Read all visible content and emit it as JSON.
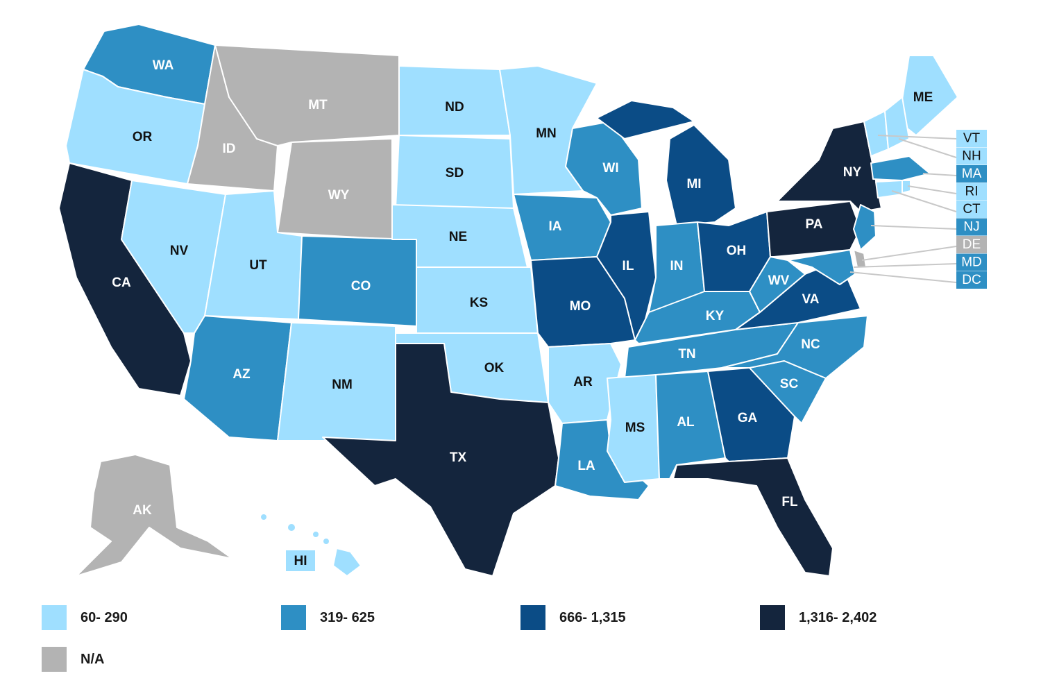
{
  "colors": {
    "c1": "#9fdfff",
    "c2": "#2e8fc4",
    "c3": "#0b4c86",
    "c4": "#14253d",
    "na": "#b3b3b3"
  },
  "legend": [
    {
      "label": "60- 290",
      "cls": "c1"
    },
    {
      "label": "319- 625",
      "cls": "c2"
    },
    {
      "label": "666- 1,315",
      "cls": "c3"
    },
    {
      "label": "1,316- 2,402",
      "cls": "c4"
    },
    {
      "label": "N/A",
      "cls": "na"
    }
  ],
  "states": [
    {
      "code": "WA",
      "cls": "c2"
    },
    {
      "code": "OR",
      "cls": "c1"
    },
    {
      "code": "CA",
      "cls": "c4"
    },
    {
      "code": "ID",
      "cls": "na"
    },
    {
      "code": "NV",
      "cls": "c1"
    },
    {
      "code": "MT",
      "cls": "na"
    },
    {
      "code": "WY",
      "cls": "na"
    },
    {
      "code": "UT",
      "cls": "c1"
    },
    {
      "code": "AZ",
      "cls": "c2"
    },
    {
      "code": "CO",
      "cls": "c2"
    },
    {
      "code": "NM",
      "cls": "c1"
    },
    {
      "code": "ND",
      "cls": "c1"
    },
    {
      "code": "SD",
      "cls": "c1"
    },
    {
      "code": "NE",
      "cls": "c1"
    },
    {
      "code": "KS",
      "cls": "c1"
    },
    {
      "code": "OK",
      "cls": "c1"
    },
    {
      "code": "TX",
      "cls": "c4"
    },
    {
      "code": "MN",
      "cls": "c1"
    },
    {
      "code": "IA",
      "cls": "c2"
    },
    {
      "code": "MO",
      "cls": "c3"
    },
    {
      "code": "AR",
      "cls": "c1"
    },
    {
      "code": "LA",
      "cls": "c2"
    },
    {
      "code": "WI",
      "cls": "c2"
    },
    {
      "code": "IL",
      "cls": "c3"
    },
    {
      "code": "MI",
      "cls": "c3"
    },
    {
      "code": "IN",
      "cls": "c2"
    },
    {
      "code": "OH",
      "cls": "c3"
    },
    {
      "code": "KY",
      "cls": "c2"
    },
    {
      "code": "TN",
      "cls": "c2"
    },
    {
      "code": "MS",
      "cls": "c1"
    },
    {
      "code": "AL",
      "cls": "c2"
    },
    {
      "code": "GA",
      "cls": "c3"
    },
    {
      "code": "FL",
      "cls": "c4"
    },
    {
      "code": "SC",
      "cls": "c2"
    },
    {
      "code": "NC",
      "cls": "c2"
    },
    {
      "code": "VA",
      "cls": "c3"
    },
    {
      "code": "WV",
      "cls": "c2"
    },
    {
      "code": "PA",
      "cls": "c4"
    },
    {
      "code": "NY",
      "cls": "c4"
    },
    {
      "code": "ME",
      "cls": "c1"
    },
    {
      "code": "AK",
      "cls": "na"
    },
    {
      "code": "HI",
      "cls": "c1"
    },
    {
      "code": "VT",
      "cls": "c1"
    },
    {
      "code": "NH",
      "cls": "c1"
    },
    {
      "code": "MA",
      "cls": "c2"
    },
    {
      "code": "RI",
      "cls": "c1"
    },
    {
      "code": "CT",
      "cls": "c1"
    },
    {
      "code": "NJ",
      "cls": "c2"
    },
    {
      "code": "DE",
      "cls": "na"
    },
    {
      "code": "MD",
      "cls": "c2"
    },
    {
      "code": "DC",
      "cls": "c2"
    }
  ]
}
